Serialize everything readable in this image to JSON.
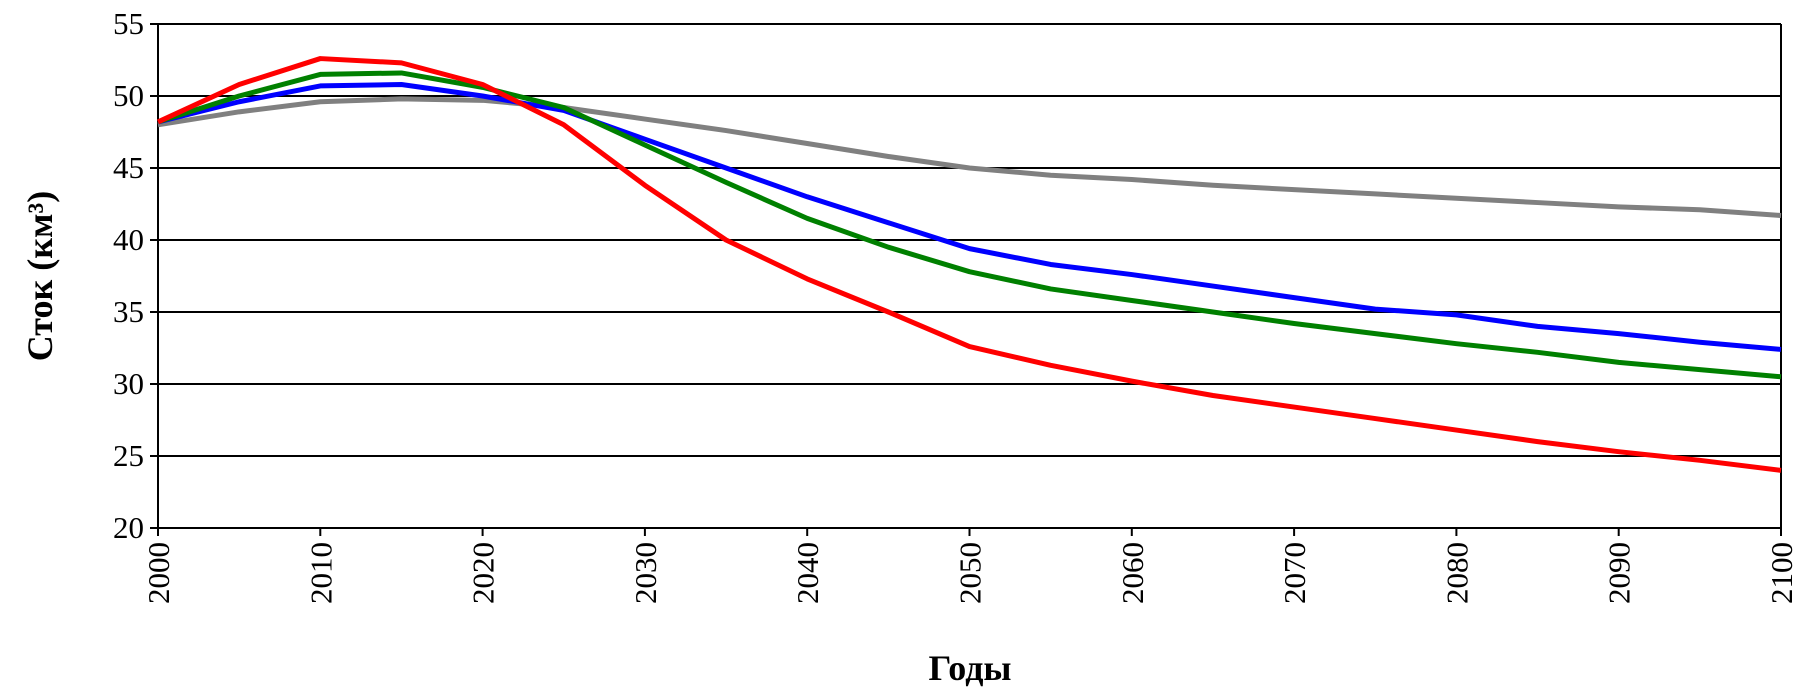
{
  "chart_data": {
    "type": "line",
    "xlabel": "Годы",
    "ylabel": "Сток (км³)",
    "x": [
      2000,
      2005,
      2010,
      2015,
      2020,
      2025,
      2030,
      2035,
      2040,
      2045,
      2050,
      2055,
      2060,
      2065,
      2070,
      2075,
      2080,
      2085,
      2090,
      2095,
      2100
    ],
    "series": [
      {
        "color": "#808080",
        "values": [
          48,
          48.9,
          49.6,
          49.8,
          49.7,
          49.2,
          48.4,
          47.6,
          46.7,
          45.8,
          45.0,
          44.5,
          44.2,
          43.8,
          43.5,
          43.2,
          42.9,
          42.6,
          42.3,
          42.1,
          41.7
        ]
      },
      {
        "color": "#0000ff",
        "values": [
          48.2,
          49.6,
          50.7,
          50.8,
          50.0,
          49.0,
          47.0,
          45.0,
          43.0,
          41.2,
          39.4,
          38.3,
          37.6,
          36.8,
          36.0,
          35.2,
          34.8,
          34.0,
          33.5,
          32.9,
          32.4
        ]
      },
      {
        "color": "#008000",
        "values": [
          48.2,
          50.0,
          51.5,
          51.6,
          50.6,
          49.2,
          46.6,
          44.0,
          41.5,
          39.5,
          37.8,
          36.6,
          35.8,
          35.0,
          34.2,
          33.5,
          32.8,
          32.2,
          31.5,
          31.0,
          30.5
        ]
      },
      {
        "color": "#ff0000",
        "values": [
          48.2,
          50.8,
          52.6,
          52.3,
          50.8,
          48.0,
          43.8,
          40.0,
          37.3,
          35.0,
          32.6,
          31.3,
          30.2,
          29.2,
          28.4,
          27.6,
          26.8,
          26.0,
          25.3,
          24.7,
          24.0
        ]
      }
    ],
    "xlim": [
      2000,
      2100
    ],
    "xticks": [
      2000,
      2010,
      2020,
      2030,
      2040,
      2050,
      2060,
      2070,
      2080,
      2090,
      2100
    ],
    "ylim": [
      20,
      55
    ],
    "yticks": [
      20,
      25,
      30,
      35,
      40,
      45,
      50,
      55
    ],
    "grid": true
  }
}
